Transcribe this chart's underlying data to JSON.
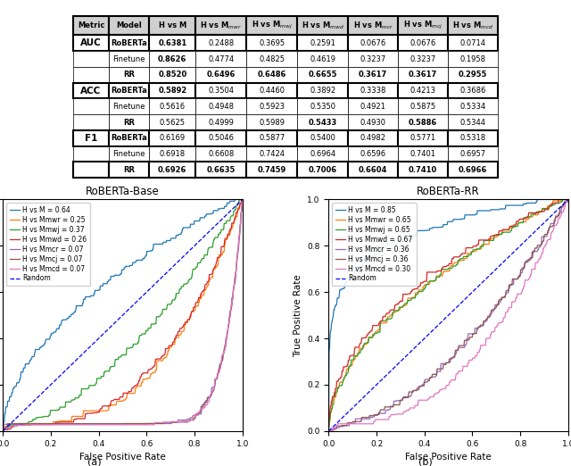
{
  "table_metrics": [
    "AUC",
    "ACC",
    "F1"
  ],
  "table_models": [
    "RoBERTa",
    "Finetune",
    "RR"
  ],
  "col_headers": [
    "Metric",
    "Model",
    "H vs M",
    "H vs M$_{mwr}$",
    "H vs M$_{mwj}$",
    "H vs M$_{mwd}$",
    "H vs M$_{mcr}$",
    "H vs M$_{mcj}$",
    "H vs M$_{mcd}$"
  ],
  "table_data": {
    "AUC": {
      "RoBERTa": [
        0.6381,
        0.2488,
        0.3695,
        0.2591,
        0.0676,
        0.0676,
        0.0714
      ],
      "Finetune": [
        0.8626,
        0.4774,
        0.4825,
        0.4619,
        0.3237,
        0.3237,
        0.1958
      ],
      "RR": [
        0.852,
        0.6496,
        0.6486,
        0.6655,
        0.3617,
        0.3617,
        0.2955
      ]
    },
    "ACC": {
      "RoBERTa": [
        0.5892,
        0.3504,
        0.446,
        0.3892,
        0.3338,
        0.4213,
        0.3686
      ],
      "Finetune": [
        0.5616,
        0.4948,
        0.5923,
        0.535,
        0.4921,
        0.5875,
        0.5334
      ],
      "RR": [
        0.5625,
        0.4999,
        0.5989,
        0.5433,
        0.493,
        0.5886,
        0.5344
      ]
    },
    "F1": {
      "RoBERTa": [
        0.6169,
        0.5046,
        0.5877,
        0.54,
        0.4982,
        0.5771,
        0.5318
      ],
      "Finetune": [
        0.6918,
        0.6608,
        0.7424,
        0.6964,
        0.6596,
        0.7401,
        0.6957
      ],
      "RR": [
        0.6926,
        0.6635,
        0.7459,
        0.7006,
        0.6604,
        0.741,
        0.6966
      ]
    }
  },
  "bold_data": {
    "AUC": {
      "RoBERTa": [
        true,
        false,
        false,
        false,
        false,
        false,
        false
      ],
      "Finetune": [
        true,
        false,
        false,
        false,
        false,
        false,
        false
      ],
      "RR": [
        true,
        true,
        true,
        true,
        true,
        true,
        true
      ]
    },
    "ACC": {
      "RoBERTa": [
        true,
        false,
        false,
        false,
        false,
        false,
        false
      ],
      "Finetune": [
        false,
        false,
        false,
        false,
        false,
        false,
        false
      ],
      "RR": [
        false,
        false,
        false,
        true,
        false,
        true,
        false
      ]
    },
    "F1": {
      "RoBERTa": [
        false,
        false,
        false,
        false,
        false,
        false,
        false
      ],
      "Finetune": [
        false,
        false,
        false,
        false,
        false,
        false,
        false
      ],
      "RR": [
        true,
        true,
        true,
        true,
        true,
        true,
        true
      ]
    }
  },
  "roc_base_title": "RoBERTa-Base",
  "roc_rr_title": "RoBERTa-RR",
  "roc_colors": [
    "#1f77b4",
    "#ff7f0e",
    "#2ca02c",
    "#d62728",
    "#9467bd",
    "#8c564b",
    "#e377c2"
  ],
  "roc_base_aucs": [
    0.64,
    0.25,
    0.37,
    0.26,
    0.07,
    0.07,
    0.07
  ],
  "roc_rr_aucs": [
    0.85,
    0.65,
    0.65,
    0.67,
    0.36,
    0.36,
    0.3
  ],
  "roc_labels_base": [
    "H vs M = 0.64",
    "H vs Mmwr = 0.25",
    "H vs Mmwj = 0.37",
    "H vs Mmwd = 0.26",
    "H vs Mmcr = 0.07",
    "H vs Mmcj = 0.07",
    "H vs Mmcd = 0.07"
  ],
  "roc_labels_rr": [
    "H vs M = 0.85",
    "H vs Mmwr = 0.65",
    "H vs Mmwj = 0.65",
    "H vs Mmwd = 0.67",
    "H vs Mmcr = 0.36",
    "H vs Mmcj = 0.36",
    "H vs Mmcd = 0.30"
  ],
  "xlabel": "False Positive Rate",
  "ylabel": "True Positive Rate",
  "caption_a": "(a)",
  "caption_b": "(b)"
}
